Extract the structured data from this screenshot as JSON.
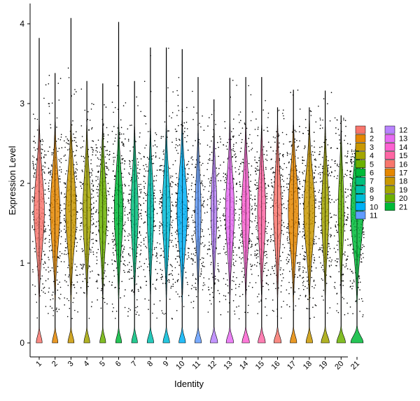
{
  "chart_data": {
    "type": "violin",
    "categories": [
      "1",
      "2",
      "3",
      "4",
      "5",
      "6",
      "7",
      "8",
      "9",
      "10",
      "11",
      "12",
      "13",
      "14",
      "15",
      "16",
      "17",
      "18",
      "19",
      "20",
      "21"
    ],
    "xlabel": "Identity",
    "ylabel": "Expression Level",
    "ylim": [
      -0.2,
      4.2
    ],
    "yticks": [
      0,
      1,
      2,
      3,
      4
    ],
    "grid": false,
    "legend_position": "right",
    "legend_columns": 2,
    "colors": [
      "#F8766D",
      "#E58700",
      "#C99800",
      "#A3A500",
      "#6BB100",
      "#00BA38",
      "#00BF7D",
      "#00C0AF",
      "#00BCD8",
      "#00B0F6",
      "#619CFF",
      "#B983FF",
      "#E76BF3",
      "#FD61D1",
      "#FF67A4",
      "#F8766D",
      "#E58700",
      "#C99800",
      "#A3A500",
      "#6BB100",
      "#00BA38"
    ],
    "series": [
      {
        "name": "1",
        "max_value": 3.82,
        "upper_mass": 0.7,
        "zero_spike": 0.4
      },
      {
        "name": "2",
        "max_value": 3.38,
        "upper_mass": 0.65,
        "zero_spike": 0.38
      },
      {
        "name": "3",
        "max_value": 4.07,
        "upper_mass": 0.72,
        "zero_spike": 0.42
      },
      {
        "name": "4",
        "max_value": 3.28,
        "upper_mass": 0.55,
        "zero_spike": 0.4
      },
      {
        "name": "5",
        "max_value": 3.25,
        "upper_mass": 0.55,
        "zero_spike": 0.4
      },
      {
        "name": "6",
        "max_value": 4.02,
        "upper_mass": 0.6,
        "zero_spike": 0.4
      },
      {
        "name": "7",
        "max_value": 3.28,
        "upper_mass": 0.5,
        "zero_spike": 0.4
      },
      {
        "name": "8",
        "max_value": 3.7,
        "upper_mass": 0.45,
        "zero_spike": 0.45
      },
      {
        "name": "9",
        "max_value": 3.7,
        "upper_mass": 0.55,
        "zero_spike": 0.45
      },
      {
        "name": "10",
        "max_value": 3.68,
        "upper_mass": 0.7,
        "zero_spike": 0.45
      },
      {
        "name": "11",
        "max_value": 3.33,
        "upper_mass": 0.4,
        "zero_spike": 0.45
      },
      {
        "name": "12",
        "max_value": 3.05,
        "upper_mass": 0.4,
        "zero_spike": 0.5
      },
      {
        "name": "13",
        "max_value": 3.32,
        "upper_mass": 0.6,
        "zero_spike": 0.5
      },
      {
        "name": "14",
        "max_value": 3.33,
        "upper_mass": 0.55,
        "zero_spike": 0.5
      },
      {
        "name": "15",
        "max_value": 3.33,
        "upper_mass": 0.55,
        "zero_spike": 0.5
      },
      {
        "name": "16",
        "max_value": 2.95,
        "upper_mass": 0.55,
        "zero_spike": 0.5
      },
      {
        "name": "17",
        "max_value": 3.17,
        "upper_mass": 0.7,
        "zero_spike": 0.45
      },
      {
        "name": "18",
        "max_value": 2.95,
        "upper_mass": 0.75,
        "zero_spike": 0.45
      },
      {
        "name": "19",
        "max_value": 3.16,
        "upper_mass": 0.5,
        "zero_spike": 0.55
      },
      {
        "name": "20",
        "max_value": 2.85,
        "upper_mass": 0.4,
        "zero_spike": 0.6
      },
      {
        "name": "21",
        "max_value": 2.49,
        "upper_mass": 0.85,
        "zero_spike": 0.85
      }
    ]
  }
}
